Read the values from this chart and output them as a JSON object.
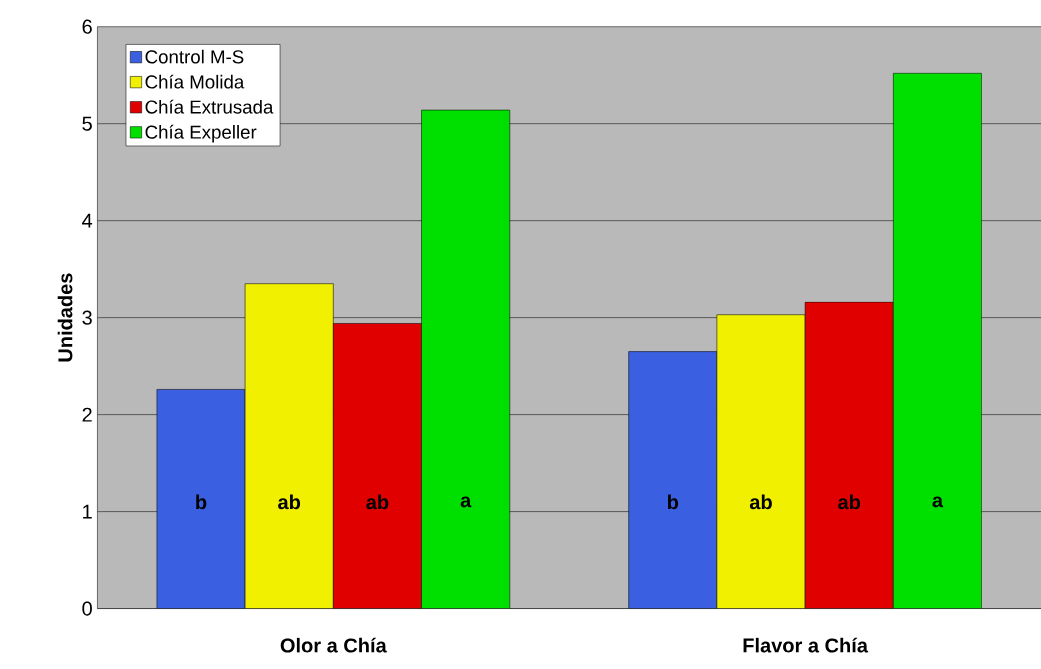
{
  "chart_data": {
    "type": "bar",
    "ylabel": "Unidades",
    "categories": [
      "Olor a Chía",
      "Flavor a Chía"
    ],
    "series": [
      {
        "name": "Control M-S",
        "color": "#3a5fe0",
        "values": [
          2.26,
          2.65
        ]
      },
      {
        "name": "Chía Molida",
        "color": "#f0f000",
        "values": [
          3.35,
          3.03
        ]
      },
      {
        "name": "Chía Extrusada",
        "color": "#e00000",
        "values": [
          2.94,
          3.16
        ]
      },
      {
        "name": "Chía Expeller",
        "color": "#00e000",
        "values": [
          5.14,
          5.52
        ]
      }
    ],
    "annotations": [
      "b",
      "ab",
      "ab",
      "a",
      "b",
      "ab",
      "ab",
      "a"
    ],
    "ylim": [
      0,
      6
    ],
    "yticks": [
      0,
      1,
      2,
      3,
      4,
      5,
      6
    ],
    "grid": "y",
    "legend": "top left"
  }
}
